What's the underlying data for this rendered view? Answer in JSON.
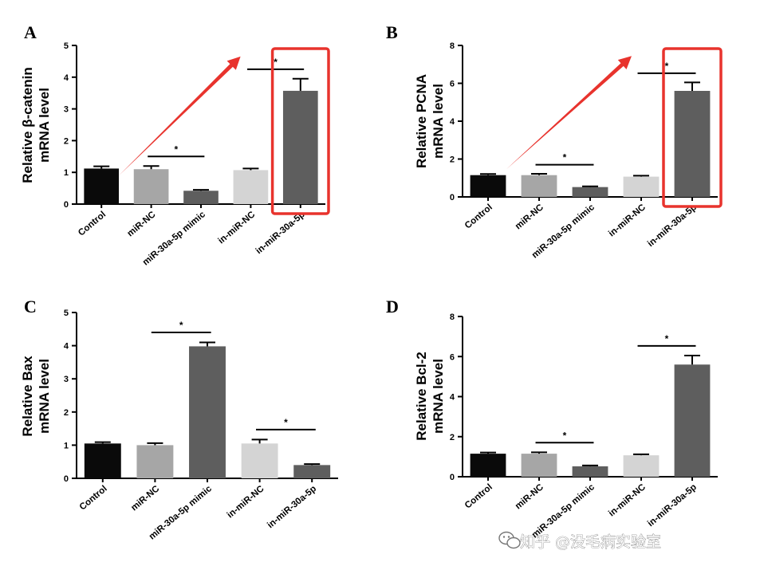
{
  "chart_data": [
    {
      "panel": "A",
      "type": "bar",
      "ylabel_lines": [
        "Relative β-catenin",
        "mRNA level"
      ],
      "categories": [
        "Control",
        "miR-NC",
        "miR-30a-5p mimic",
        "in-miR-NC",
        "in-miR-30a-5p"
      ],
      "values": [
        1.12,
        1.1,
        0.42,
        1.07,
        3.57
      ],
      "errors": [
        0.07,
        0.1,
        0.03,
        0.05,
        0.38
      ],
      "colors": [
        "#0a0a0a",
        "#a6a6a6",
        "#5e5e5e",
        "#d4d4d4",
        "#5e5e5e"
      ],
      "ylim": [
        0,
        5
      ],
      "yticks": [
        0,
        1,
        2,
        3,
        4,
        5
      ],
      "significance": [
        {
          "from": 1,
          "to": 2,
          "label": "*"
        },
        {
          "from": 3,
          "to": 4,
          "label": "*"
        }
      ],
      "annotations": {
        "arrow": true,
        "highlight_box_category": 4
      }
    },
    {
      "panel": "B",
      "type": "bar",
      "ylabel_lines": [
        "Relative PCNA",
        "mRNA level"
      ],
      "categories": [
        "Control",
        "miR-NC",
        "miR-30a-5p mimic",
        "in-miR-NC",
        "in-miR-30a-5p"
      ],
      "values": [
        1.15,
        1.15,
        0.52,
        1.07,
        5.6
      ],
      "errors": [
        0.06,
        0.07,
        0.04,
        0.05,
        0.45
      ],
      "colors": [
        "#0a0a0a",
        "#a6a6a6",
        "#5e5e5e",
        "#d4d4d4",
        "#5e5e5e"
      ],
      "ylim": [
        0,
        8
      ],
      "yticks": [
        0,
        2,
        4,
        6,
        8
      ],
      "significance": [
        {
          "from": 1,
          "to": 2,
          "label": "*"
        },
        {
          "from": 3,
          "to": 4,
          "label": "*"
        }
      ],
      "annotations": {
        "arrow": true,
        "highlight_box_category": 4
      }
    },
    {
      "panel": "C",
      "type": "bar",
      "ylabel_lines": [
        "Relative Bax",
        "mRNA level"
      ],
      "categories": [
        "Control",
        "miR-NC",
        "miR-30a-5p mimic",
        "in-miR-NC",
        "in-miR-30a-5p"
      ],
      "values": [
        1.05,
        1.0,
        3.98,
        1.05,
        0.4
      ],
      "errors": [
        0.04,
        0.06,
        0.12,
        0.12,
        0.03
      ],
      "colors": [
        "#0a0a0a",
        "#a6a6a6",
        "#5e5e5e",
        "#d4d4d4",
        "#5e5e5e"
      ],
      "ylim": [
        0,
        5
      ],
      "yticks": [
        0,
        1,
        2,
        3,
        4,
        5
      ],
      "significance": [
        {
          "from": 1,
          "to": 2,
          "label": "*"
        },
        {
          "from": 3,
          "to": 4,
          "label": "*"
        }
      ],
      "annotations": {
        "arrow": false
      }
    },
    {
      "panel": "D",
      "type": "bar",
      "ylabel_lines": [
        "Relative Bcl-2",
        "mRNA level"
      ],
      "categories": [
        "Control",
        "miR-NC",
        "miR-30a-5p mimic",
        "in-miR-NC",
        "in-miR-30a-5p"
      ],
      "values": [
        1.15,
        1.15,
        0.52,
        1.07,
        5.6
      ],
      "errors": [
        0.06,
        0.07,
        0.04,
        0.05,
        0.45
      ],
      "colors": [
        "#0a0a0a",
        "#a6a6a6",
        "#5e5e5e",
        "#d4d4d4",
        "#5e5e5e"
      ],
      "ylim": [
        0,
        8
      ],
      "yticks": [
        0,
        2,
        4,
        6,
        8
      ],
      "significance": [
        {
          "from": 1,
          "to": 2,
          "label": "*"
        },
        {
          "from": 3,
          "to": 4,
          "label": "*"
        }
      ],
      "annotations": {
        "arrow": false
      }
    }
  ],
  "watermark": {
    "text": "知乎 @没毛病实验室",
    "icon": "wechat-icon"
  },
  "accent_color": "#e8332d"
}
